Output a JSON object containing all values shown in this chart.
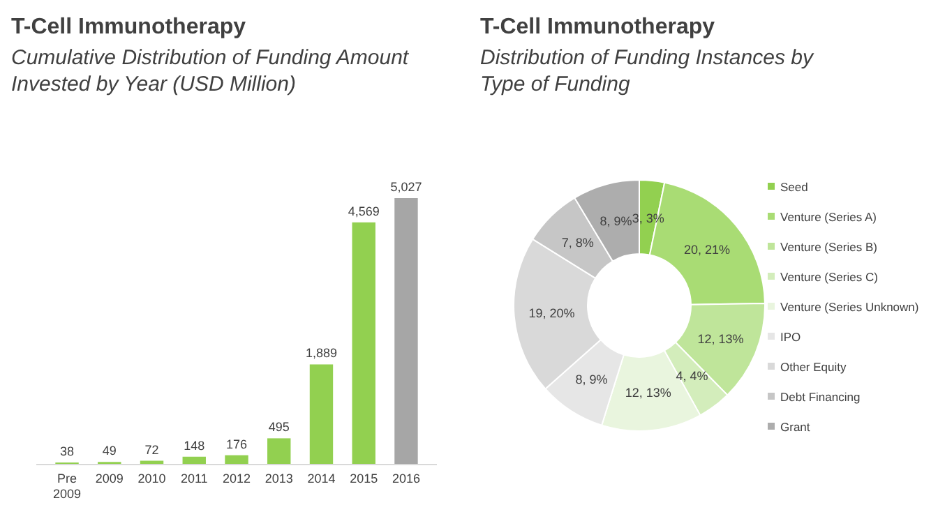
{
  "chart_data": [
    {
      "type": "bar",
      "title": "T-Cell Immunotherapy",
      "subtitle": "Cumulative Distribution of Funding Amount Invested by Year (USD Million)",
      "categories": [
        "Pre 2009",
        "2009",
        "2010",
        "2011",
        "2012",
        "2013",
        "2014",
        "2015",
        "2016"
      ],
      "values": [
        38,
        49,
        72,
        148,
        176,
        495,
        1889,
        4569,
        5027
      ],
      "value_labels": [
        "38",
        "49",
        "72",
        "148",
        "176",
        "495",
        "1,889",
        "4,569",
        "5,027"
      ],
      "colors": [
        "#92d050",
        "#92d050",
        "#92d050",
        "#92d050",
        "#92d050",
        "#92d050",
        "#92d050",
        "#92d050",
        "#a6a6a6"
      ],
      "tick_labels": "x"
    },
    {
      "type": "donut",
      "title": "T-Cell Immunotherapy",
      "subtitle": "Distribution of Funding Instances by Type of Funding",
      "categories": [
        "Seed",
        "Venture (Series A)",
        "Venture (Series B)",
        "Venture (Series C)",
        "Venture (Series Unknown)",
        "IPO",
        "Other Equity",
        "Debt Financing",
        "Grant"
      ],
      "values": [
        3,
        20,
        12,
        4,
        12,
        8,
        19,
        7,
        8
      ],
      "value_labels": [
        "3, 3%",
        "20, 21%",
        "12, 13%",
        "4, 4%",
        "12, 13%",
        "8, 9%",
        "19, 20%",
        "7, 8%",
        "8, 9%"
      ],
      "colors": [
        "#92d050",
        "#a9dc74",
        "#bfe59a",
        "#d3edbb",
        "#e9f5de",
        "#e6e6e6",
        "#d9d9d9",
        "#c6c6c6",
        "#adadad"
      ],
      "legend": "right"
    }
  ]
}
